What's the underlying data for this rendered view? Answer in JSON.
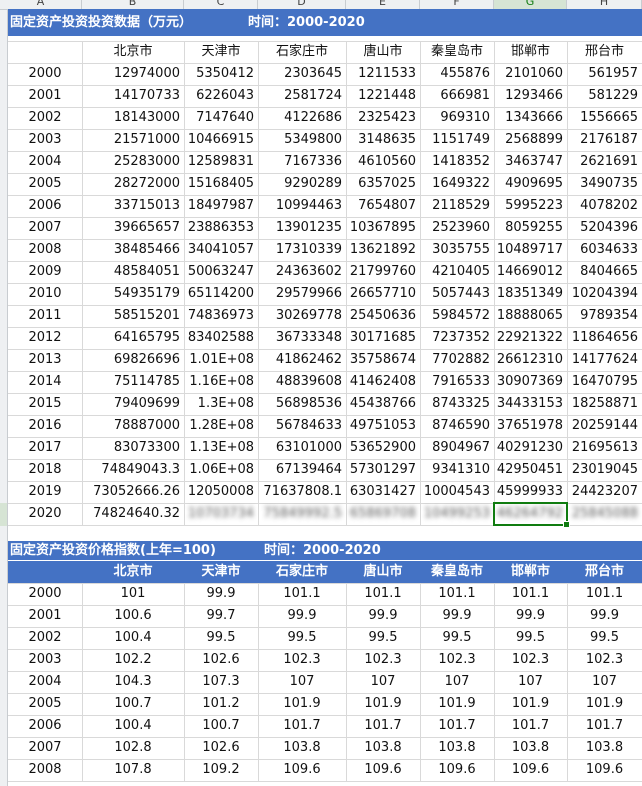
{
  "columns": [
    "A",
    "B",
    "C",
    "D",
    "E",
    "F",
    "G",
    "H"
  ],
  "table1": {
    "title": "固定资产投资投资数据（万元）",
    "time_label": "时间：2000-2020",
    "cities": [
      "北京市",
      "天津市",
      "石家庄市",
      "唐山市",
      "秦皇岛市",
      "邯郸市",
      "邢台市"
    ],
    "rows": [
      {
        "year": "2000",
        "values": [
          "12974000",
          "5350412",
          "2303645",
          "1211533",
          "455876",
          "2101060",
          "561957"
        ]
      },
      {
        "year": "2001",
        "values": [
          "14170733",
          "6226043",
          "2581724",
          "1221448",
          "666981",
          "1293466",
          "581229"
        ]
      },
      {
        "year": "2002",
        "values": [
          "18143000",
          "7147640",
          "4122686",
          "2325423",
          "969310",
          "1343666",
          "1556665"
        ]
      },
      {
        "year": "2003",
        "values": [
          "21571000",
          "10466915",
          "5349800",
          "3148635",
          "1151749",
          "2568899",
          "2176187"
        ]
      },
      {
        "year": "2004",
        "values": [
          "25283000",
          "12589831",
          "7167336",
          "4610560",
          "1418352",
          "3463747",
          "2621691"
        ]
      },
      {
        "year": "2005",
        "values": [
          "28272000",
          "15168405",
          "9290289",
          "6357025",
          "1649322",
          "4909695",
          "3490735"
        ]
      },
      {
        "year": "2006",
        "values": [
          "33715013",
          "18497987",
          "10994463",
          "7654807",
          "2118529",
          "5995223",
          "4078202"
        ]
      },
      {
        "year": "2007",
        "values": [
          "39665657",
          "23886353",
          "13901235",
          "10367895",
          "2523960",
          "8059255",
          "5204396"
        ]
      },
      {
        "year": "2008",
        "values": [
          "38485466",
          "34041057",
          "17310339",
          "13621892",
          "3035755",
          "10489717",
          "6034633"
        ]
      },
      {
        "year": "2009",
        "values": [
          "48584051",
          "50063247",
          "24363602",
          "21799760",
          "4210405",
          "14669012",
          "8404665"
        ]
      },
      {
        "year": "2010",
        "values": [
          "54935179",
          "65114200",
          "29579966",
          "26657710",
          "5057443",
          "18351349",
          "10204394"
        ]
      },
      {
        "year": "2011",
        "values": [
          "58515201",
          "74836973",
          "30269778",
          "25450636",
          "5984572",
          "18888065",
          "9789354"
        ]
      },
      {
        "year": "2012",
        "values": [
          "64165795",
          "83402588",
          "36733348",
          "30171685",
          "7237352",
          "22921322",
          "11864656"
        ]
      },
      {
        "year": "2013",
        "values": [
          "69826696",
          "1.01E+08",
          "41862462",
          "35758674",
          "7702882",
          "26612310",
          "14177624"
        ]
      },
      {
        "year": "2014",
        "values": [
          "75114785",
          "1.16E+08",
          "48839608",
          "41462408",
          "7916533",
          "30907369",
          "16470795"
        ]
      },
      {
        "year": "2015",
        "values": [
          "79409699",
          "1.3E+08",
          "56898536",
          "45438766",
          "8743325",
          "34433153",
          "18258871"
        ]
      },
      {
        "year": "2016",
        "values": [
          "78887000",
          "1.28E+08",
          "56784633",
          "49751053",
          "8746590",
          "37651978",
          "20259144"
        ]
      },
      {
        "year": "2017",
        "values": [
          "83073300",
          "1.13E+08",
          "63101000",
          "53652900",
          "8904967",
          "40291230",
          "21695613"
        ]
      },
      {
        "year": "2018",
        "values": [
          "74849043.3",
          "1.06E+08",
          "67139464",
          "57301297",
          "9341310",
          "42950451",
          "23019045"
        ]
      },
      {
        "year": "2019",
        "values": [
          "73052666.26",
          "12050008",
          "71637808.1",
          "63031427",
          "10004543",
          "45999933",
          "24423207"
        ]
      },
      {
        "year": "2020",
        "values": [
          "74824640.32",
          "10703734",
          "75849992.5",
          "65869708",
          "10499253",
          "46264792",
          "25845088"
        ]
      }
    ]
  },
  "table2": {
    "title": "固定资产投资价格指数(上年=100)",
    "time_label": "时间：2000-2020",
    "cities": [
      "北京市",
      "天津市",
      "石家庄市",
      "唐山市",
      "秦皇岛市",
      "邯郸市",
      "邢台市"
    ],
    "rows": [
      {
        "year": "2000",
        "values": [
          "101",
          "99.9",
          "101.1",
          "101.1",
          "101.1",
          "101.1",
          "101.1"
        ]
      },
      {
        "year": "2001",
        "values": [
          "100.6",
          "99.7",
          "99.9",
          "99.9",
          "99.9",
          "99.9",
          "99.9"
        ]
      },
      {
        "year": "2002",
        "values": [
          "100.4",
          "99.5",
          "99.5",
          "99.5",
          "99.5",
          "99.5",
          "99.5"
        ]
      },
      {
        "year": "2003",
        "values": [
          "102.2",
          "102.6",
          "102.3",
          "102.3",
          "102.3",
          "102.3",
          "102.3"
        ]
      },
      {
        "year": "2004",
        "values": [
          "104.3",
          "107.3",
          "107",
          "107",
          "107",
          "107",
          "107"
        ]
      },
      {
        "year": "2005",
        "values": [
          "100.7",
          "101.2",
          "101.9",
          "101.9",
          "101.9",
          "101.9",
          "101.9"
        ]
      },
      {
        "year": "2006",
        "values": [
          "100.4",
          "100.7",
          "101.7",
          "101.7",
          "101.7",
          "101.7",
          "101.7"
        ]
      },
      {
        "year": "2007",
        "values": [
          "102.8",
          "102.6",
          "103.8",
          "103.8",
          "103.8",
          "103.8",
          "103.8"
        ]
      },
      {
        "year": "2008",
        "values": [
          "107.8",
          "109.2",
          "109.6",
          "109.6",
          "109.6",
          "109.6",
          "109.6"
        ]
      }
    ]
  },
  "selected_cell": "G",
  "colors": {
    "banner": "#4472c4",
    "selection": "#107c10",
    "grid": "#d9d9d9"
  }
}
